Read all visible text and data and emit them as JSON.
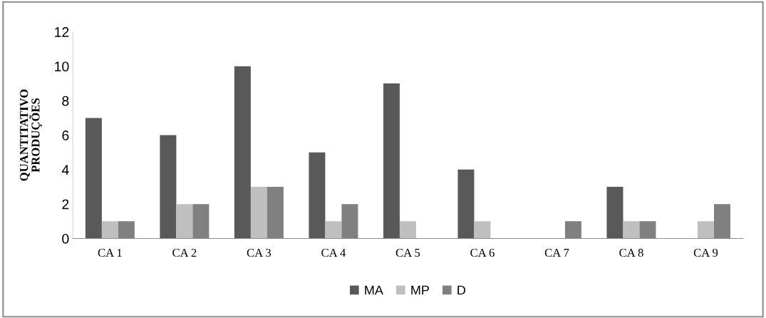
{
  "chart_data": {
    "type": "bar",
    "ylabel": "QUANTITATIVO\nPRODUÇÕES",
    "categories": [
      "CA 1",
      "CA 2",
      "CA 3",
      "CA 4",
      "CA 5",
      "CA 6",
      "CA 7",
      "CA 8",
      "CA 9"
    ],
    "series": [
      {
        "name": "MA",
        "color": "#595959",
        "values": [
          7,
          6,
          10,
          5,
          9,
          4,
          0,
          3,
          0
        ]
      },
      {
        "name": "MP",
        "color": "#bfbfbf",
        "values": [
          1,
          2,
          3,
          1,
          1,
          1,
          0,
          1,
          1
        ]
      },
      {
        "name": "D",
        "color": "#808080",
        "values": [
          1,
          2,
          3,
          2,
          0,
          0,
          1,
          1,
          2
        ]
      }
    ],
    "ylim": [
      0,
      12
    ],
    "yticks": [
      0,
      2,
      4,
      6,
      8,
      10,
      12
    ],
    "grid": false,
    "legend": "bottom"
  }
}
